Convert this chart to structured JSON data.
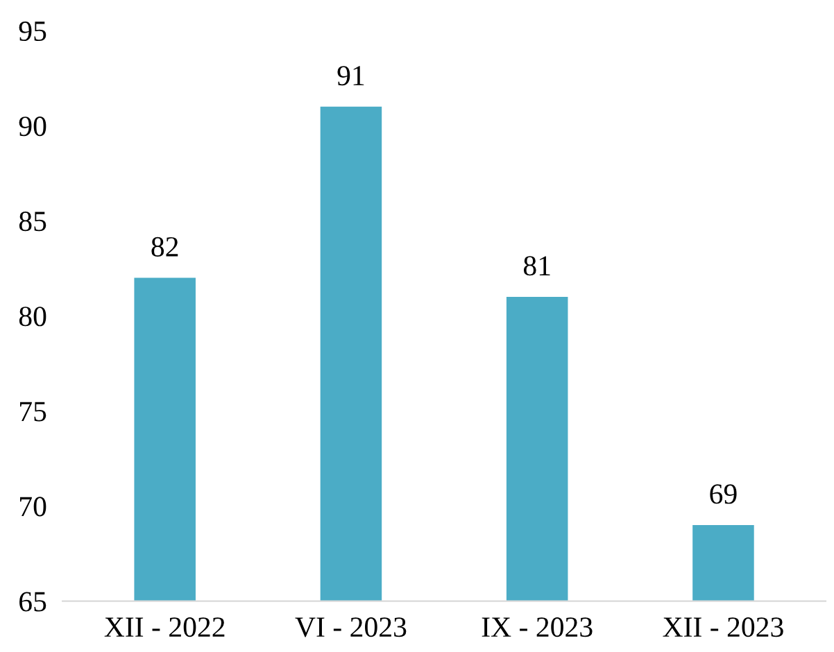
{
  "chart_data": {
    "type": "bar",
    "categories": [
      "XII - 2022",
      "VI - 2023",
      "IX - 2023",
      "XII - 2023"
    ],
    "values": [
      82,
      91,
      81,
      69
    ],
    "color": "#4bacc6",
    "ylim": [
      65,
      95
    ],
    "yticks": [
      65,
      70,
      75,
      80,
      85,
      90,
      95
    ],
    "grid": false,
    "data_labels": true
  }
}
